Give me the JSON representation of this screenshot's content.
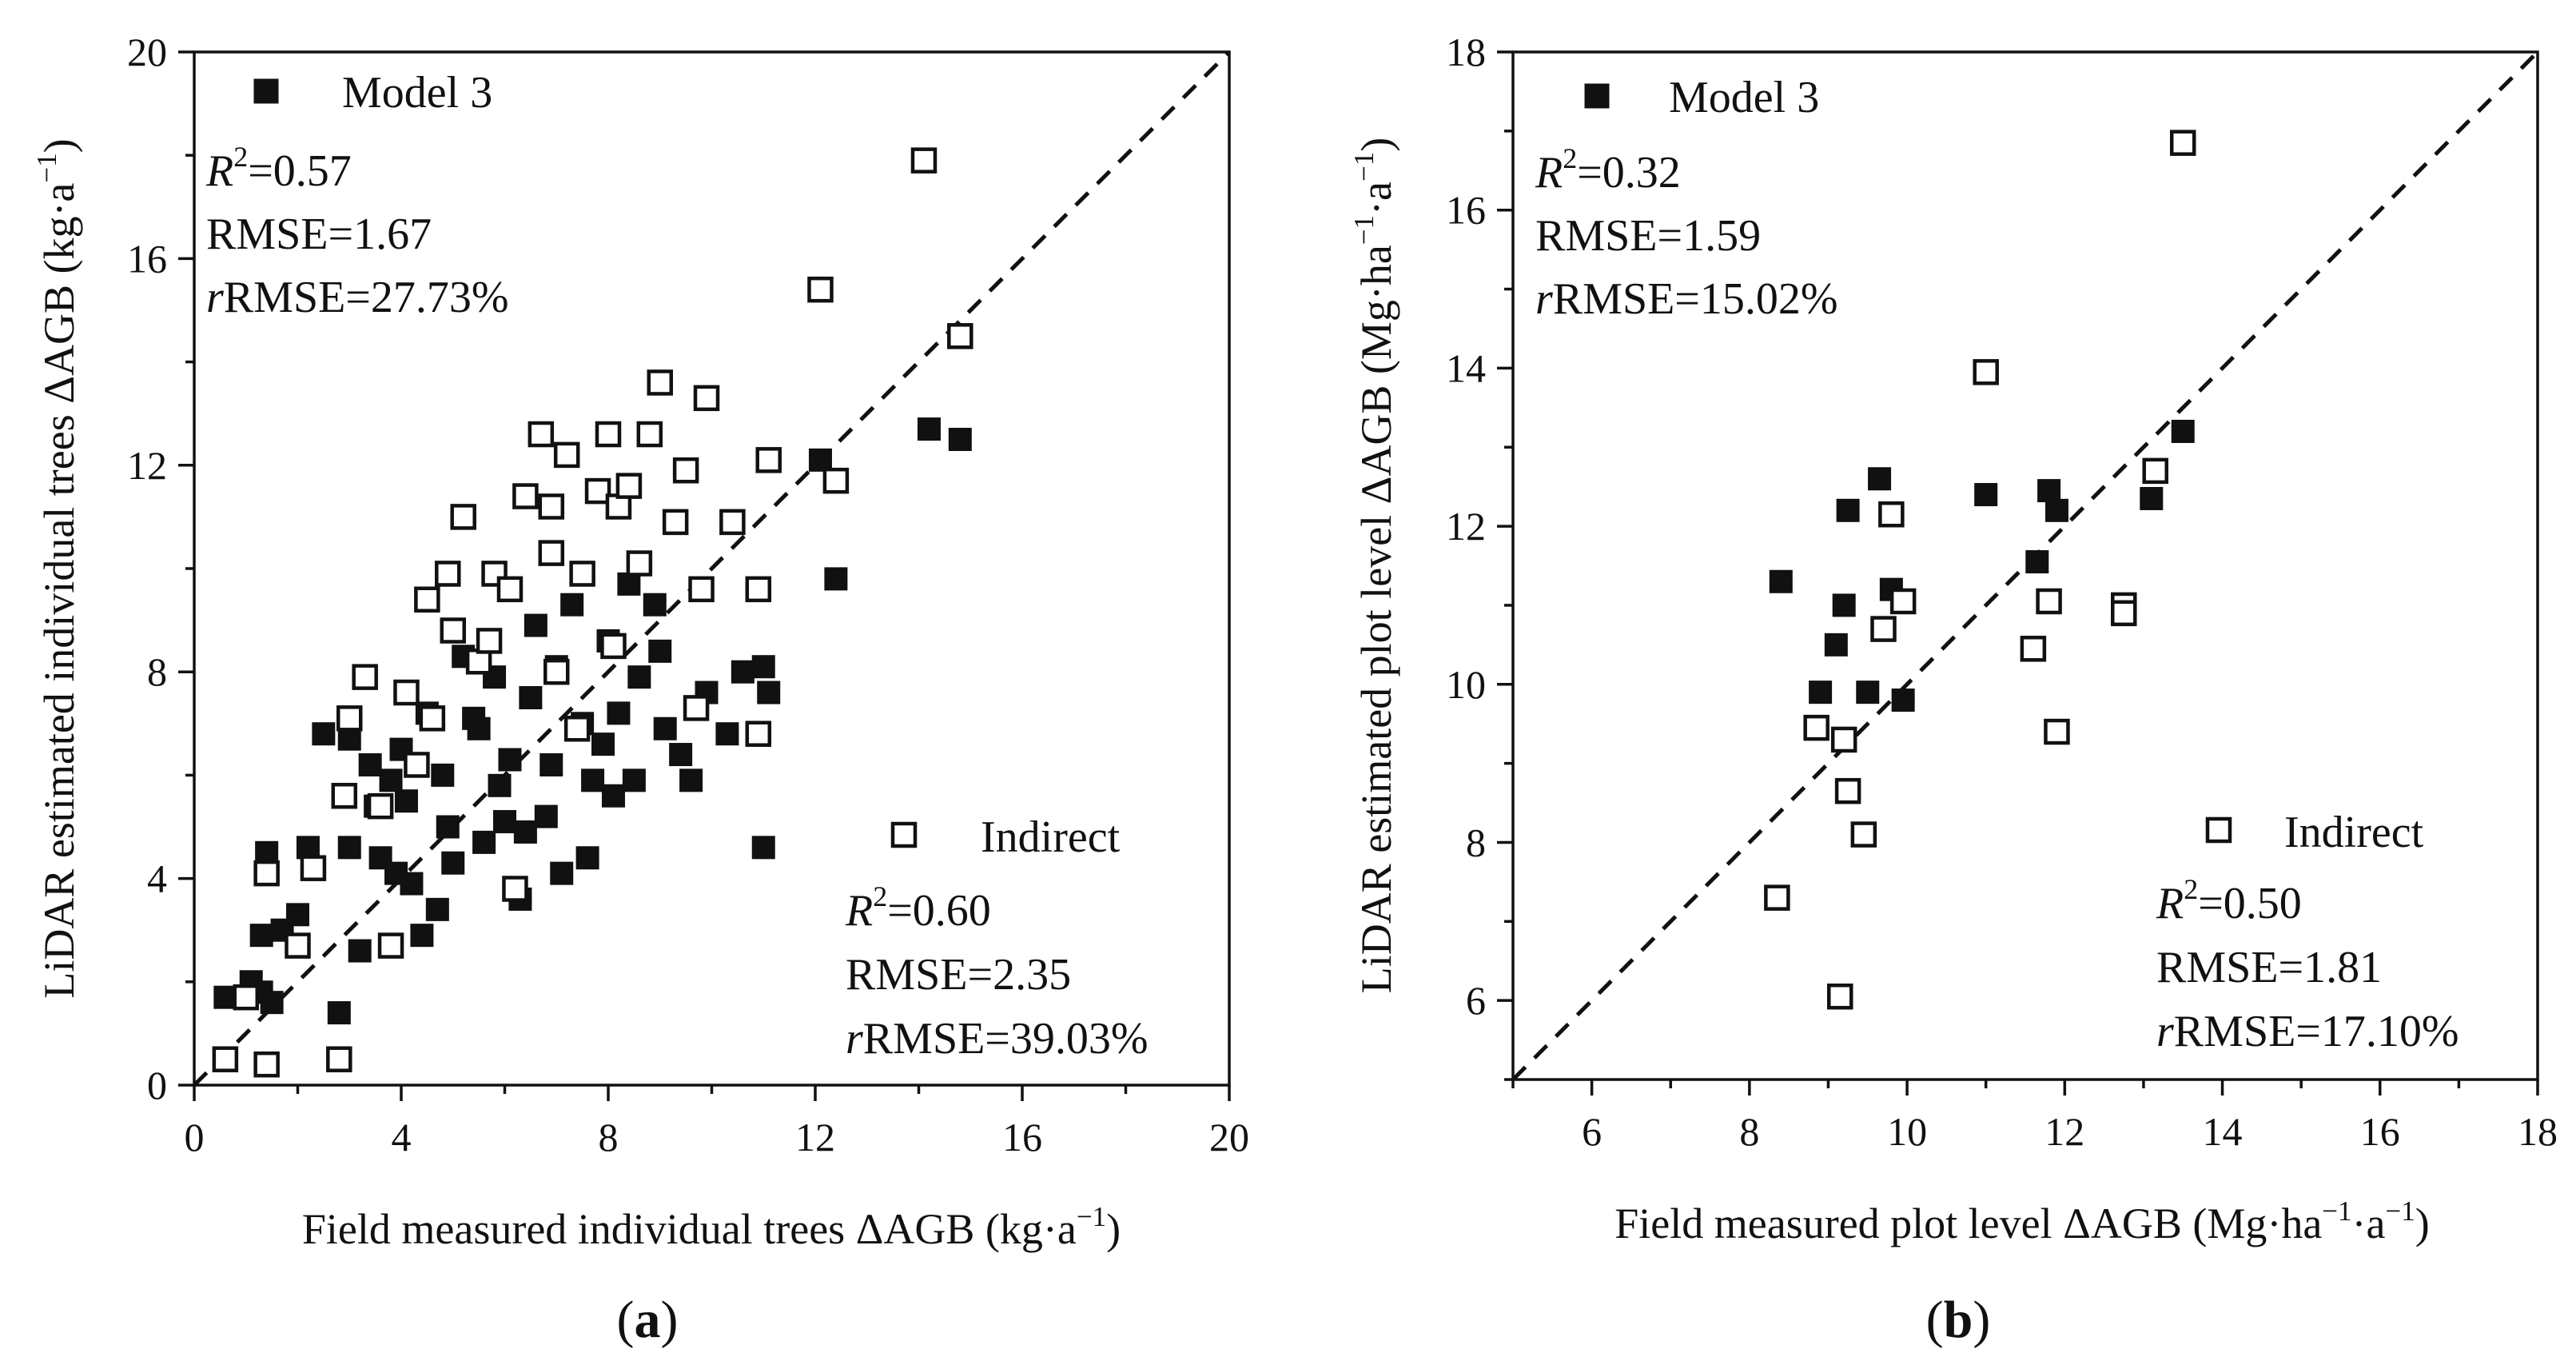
{
  "chart_data": [
    {
      "type": "scatter",
      "panel_label": "(a)",
      "panel_letter": "a",
      "xlabel": {
        "pre": "Field measured individual trees ΔAGB (kg·a",
        "sup": "−1",
        "post": ")"
      },
      "ylabel": {
        "pre": "LiDAR estimated individual trees ΔAGB (kg·a",
        "sup": "−1",
        "post": ")"
      },
      "xlim": [
        0,
        20
      ],
      "ylim": [
        0,
        20
      ],
      "xticks": [
        0,
        4,
        8,
        12,
        16,
        20
      ],
      "yticks": [
        0,
        4,
        8,
        12,
        16,
        20
      ],
      "xminor": [
        2,
        6,
        10,
        14,
        18
      ],
      "yminor": [
        2,
        6,
        10,
        14,
        18
      ],
      "reference_line": "1:1",
      "legend": {
        "model3": {
          "label": "Model 3",
          "r2": "=0.57",
          "rmse": "RMSE=1.67",
          "rrmse": "RMSE=27.73%"
        },
        "indirect": {
          "label": "Indirect",
          "r2": "=0.60",
          "rmse": "RMSE=2.35",
          "rrmse": "RMSE=39.03%"
        }
      },
      "series": [
        {
          "name": "Model 3",
          "marker": "filled-square",
          "points": [
            [
              0.6,
              1.7
            ],
            [
              1.1,
              2.0
            ],
            [
              1.3,
              1.8
            ],
            [
              1.5,
              1.6
            ],
            [
              1.4,
              4.5
            ],
            [
              1.3,
              2.9
            ],
            [
              1.7,
              3.0
            ],
            [
              2.0,
              3.3
            ],
            [
              2.2,
              4.6
            ],
            [
              2.5,
              6.8
            ],
            [
              2.8,
              1.4
            ],
            [
              3.0,
              6.7
            ],
            [
              3.2,
              2.6
            ],
            [
              3.4,
              6.2
            ],
            [
              3.6,
              4.4
            ],
            [
              3.9,
              4.1
            ],
            [
              4.1,
              5.5
            ],
            [
              4.4,
              2.9
            ],
            [
              4.7,
              3.4
            ],
            [
              4.9,
              5.0
            ],
            [
              5.2,
              8.3
            ],
            [
              5.4,
              7.1
            ],
            [
              5.6,
              4.7
            ],
            [
              5.9,
              5.8
            ],
            [
              6.1,
              6.3
            ],
            [
              6.3,
              3.6
            ],
            [
              6.6,
              8.9
            ],
            [
              6.8,
              5.2
            ],
            [
              7.1,
              4.1
            ],
            [
              7.3,
              9.3
            ],
            [
              7.6,
              4.4
            ],
            [
              7.9,
              6.6
            ],
            [
              8.1,
              5.6
            ],
            [
              8.4,
              9.7
            ],
            [
              8.6,
              7.9
            ],
            [
              8.9,
              9.3
            ],
            [
              9.1,
              6.9
            ],
            [
              9.4,
              6.4
            ],
            [
              9.6,
              5.9
            ],
            [
              9.9,
              7.6
            ],
            [
              10.3,
              6.8
            ],
            [
              10.6,
              8.0
            ],
            [
              11.0,
              4.6
            ],
            [
              11.0,
              8.1
            ],
            [
              11.1,
              7.6
            ],
            [
              12.1,
              12.1
            ],
            [
              12.4,
              9.8
            ],
            [
              14.2,
              12.7
            ],
            [
              14.8,
              12.5
            ],
            [
              3.0,
              4.6
            ],
            [
              3.5,
              5.4
            ],
            [
              4.0,
              6.5
            ],
            [
              4.5,
              7.2
            ],
            [
              5.0,
              4.3
            ],
            [
              5.5,
              6.9
            ],
            [
              6.0,
              5.1
            ],
            [
              6.5,
              7.5
            ],
            [
              7.0,
              8.1
            ],
            [
              7.5,
              7.0
            ],
            [
              8.0,
              8.6
            ],
            [
              8.5,
              5.9
            ],
            [
              9.0,
              8.4
            ],
            [
              4.2,
              3.9
            ],
            [
              5.8,
              7.9
            ],
            [
              6.4,
              4.9
            ],
            [
              7.7,
              5.9
            ],
            [
              8.2,
              7.2
            ],
            [
              3.8,
              5.9
            ],
            [
              4.8,
              6.0
            ],
            [
              6.9,
              6.2
            ]
          ]
        },
        {
          "name": "Indirect",
          "marker": "open-square",
          "points": [
            [
              0.6,
              0.5
            ],
            [
              1.0,
              1.7
            ],
            [
              1.4,
              0.4
            ],
            [
              1.4,
              4.1
            ],
            [
              2.0,
              2.7
            ],
            [
              2.3,
              4.2
            ],
            [
              2.8,
              0.5
            ],
            [
              2.9,
              5.6
            ],
            [
              3.0,
              7.1
            ],
            [
              3.3,
              7.9
            ],
            [
              3.8,
              2.7
            ],
            [
              4.1,
              7.6
            ],
            [
              4.5,
              9.4
            ],
            [
              4.9,
              9.9
            ],
            [
              5.2,
              11.0
            ],
            [
              5.5,
              8.2
            ],
            [
              5.8,
              9.9
            ],
            [
              6.1,
              9.6
            ],
            [
              6.4,
              11.4
            ],
            [
              6.7,
              12.6
            ],
            [
              6.9,
              11.2
            ],
            [
              7.2,
              12.2
            ],
            [
              7.5,
              9.9
            ],
            [
              7.8,
              11.5
            ],
            [
              8.0,
              12.6
            ],
            [
              8.2,
              11.2
            ],
            [
              8.4,
              11.6
            ],
            [
              8.6,
              10.1
            ],
            [
              8.8,
              12.6
            ],
            [
              9.0,
              13.6
            ],
            [
              9.3,
              10.9
            ],
            [
              9.5,
              11.9
            ],
            [
              9.8,
              9.6
            ],
            [
              9.9,
              13.3
            ],
            [
              10.4,
              10.9
            ],
            [
              10.9,
              9.6
            ],
            [
              10.9,
              6.8
            ],
            [
              11.1,
              12.1
            ],
            [
              12.1,
              15.4
            ],
            [
              12.4,
              11.7
            ],
            [
              14.1,
              17.9
            ],
            [
              14.8,
              14.5
            ],
            [
              6.2,
              3.8
            ],
            [
              5.0,
              8.8
            ],
            [
              4.6,
              7.1
            ],
            [
              7.0,
              8.0
            ],
            [
              7.4,
              6.9
            ],
            [
              8.1,
              8.5
            ],
            [
              3.6,
              5.4
            ],
            [
              4.3,
              6.2
            ],
            [
              5.7,
              8.6
            ],
            [
              9.7,
              7.3
            ],
            [
              6.9,
              10.3
            ]
          ]
        }
      ]
    },
    {
      "type": "scatter",
      "panel_label": "(b)",
      "panel_letter": "b",
      "xlabel": {
        "pre": "Field measured plot level ΔAGB (Mg·ha",
        "sup": "−1",
        "mid": "·a",
        "sup2": "−1",
        "post": ")"
      },
      "ylabel": {
        "pre": "LiDAR estimated plot level ΔAGB (Mg·ha",
        "sup": "−1",
        "mid": "·a",
        "sup2": "−1",
        "post": ")"
      },
      "xlim": [
        5,
        18
      ],
      "ylim": [
        5,
        18
      ],
      "xticks": [
        6,
        8,
        10,
        12,
        14,
        16,
        18
      ],
      "yticks": [
        6,
        8,
        10,
        12,
        14,
        16,
        18
      ],
      "xminor": [
        5,
        7,
        9,
        11,
        13,
        15,
        17
      ],
      "yminor": [
        5,
        7,
        9,
        11,
        13,
        15,
        17
      ],
      "reference_line": "1:1",
      "legend": {
        "model3": {
          "label": "Model 3",
          "r2": "=0.32",
          "rmse": "RMSE=1.59",
          "rrmse": "RMSE=15.02%"
        },
        "indirect": {
          "label": "Indirect",
          "r2": "=0.50",
          "rmse": "RMSE=1.81",
          "rrmse": "RMSE=17.10%"
        }
      },
      "series": [
        {
          "name": "Model 3",
          "marker": "filled-square",
          "points": [
            [
              8.4,
              11.3
            ],
            [
              8.9,
              9.9
            ],
            [
              9.1,
              10.5
            ],
            [
              9.2,
              11.0
            ],
            [
              9.25,
              12.2
            ],
            [
              9.5,
              9.9
            ],
            [
              9.65,
              12.6
            ],
            [
              9.8,
              11.2
            ],
            [
              9.95,
              9.8
            ],
            [
              11.0,
              12.4
            ],
            [
              11.65,
              11.55
            ],
            [
              11.8,
              12.45
            ],
            [
              11.9,
              12.2
            ],
            [
              13.1,
              12.35
            ],
            [
              13.5,
              13.2
            ]
          ]
        },
        {
          "name": "Indirect",
          "marker": "open-square",
          "points": [
            [
              8.35,
              7.3
            ],
            [
              8.85,
              9.45
            ],
            [
              9.15,
              6.05
            ],
            [
              9.2,
              9.3
            ],
            [
              9.25,
              8.65
            ],
            [
              9.45,
              8.1
            ],
            [
              9.7,
              10.7
            ],
            [
              9.8,
              12.15
            ],
            [
              9.95,
              11.05
            ],
            [
              11.0,
              13.95
            ],
            [
              11.6,
              10.45
            ],
            [
              11.8,
              11.05
            ],
            [
              11.9,
              9.4
            ],
            [
              12.75,
              11.0
            ],
            [
              12.75,
              10.9
            ],
            [
              13.15,
              12.7
            ],
            [
              13.5,
              16.85
            ]
          ]
        }
      ]
    }
  ]
}
